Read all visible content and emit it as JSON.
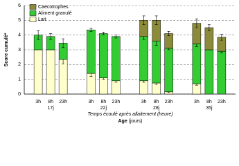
{
  "chart_data": {
    "type": "stacked_bar",
    "y_label": "Score cumulé*",
    "x_label": "Temps écoulé après allaitement (heure)",
    "x_sublabel": {
      "bold": "Age",
      "text": "(jours)"
    },
    "categories": [
      "3h",
      "8h",
      "23h",
      "3h",
      "8h",
      "23h",
      "3h",
      "8h",
      "23h",
      "3h",
      "8h",
      "23h"
    ],
    "groups": [
      "17j",
      "22j",
      "28j",
      "35j"
    ],
    "series": [
      {
        "name": "Lait",
        "color": "#ffffcc",
        "values": [
          3.0,
          3.0,
          2.35,
          1.4,
          1.1,
          0.9,
          0.9,
          0.75,
          0.15,
          0.7,
          0,
          0
        ],
        "errors": [
          null,
          null,
          0.3,
          0.2,
          0.1,
          0.1,
          0.1,
          0.1,
          0.05,
          0.1,
          null,
          null
        ]
      },
      {
        "name": "Aliment granulé",
        "color": "#33cc33",
        "values": [
          1.0,
          0.9,
          1.1,
          2.95,
          3.0,
          3.0,
          3.0,
          2.85,
          2.95,
          2.7,
          3.0,
          2.9
        ],
        "errors": [
          0.3,
          0.2,
          0.3,
          0.1,
          0.1,
          0.1,
          0.2,
          0.3,
          0.1,
          0.2,
          null,
          0.1
        ]
      },
      {
        "name": "Caecotrophes",
        "color": "#8b8b3a",
        "values": [
          0,
          0,
          0,
          0,
          0,
          0,
          1.1,
          1.4,
          1.0,
          1.4,
          1.5,
          0.95
        ],
        "errors": [
          null,
          null,
          null,
          null,
          null,
          null,
          0.3,
          0.3,
          0.15,
          0.3,
          0.2,
          0.2
        ]
      }
    ],
    "ylim": [
      0,
      6
    ],
    "yticks": [
      0,
      1,
      2,
      3,
      4,
      5,
      6
    ],
    "grid": true,
    "legend": "top-left"
  }
}
